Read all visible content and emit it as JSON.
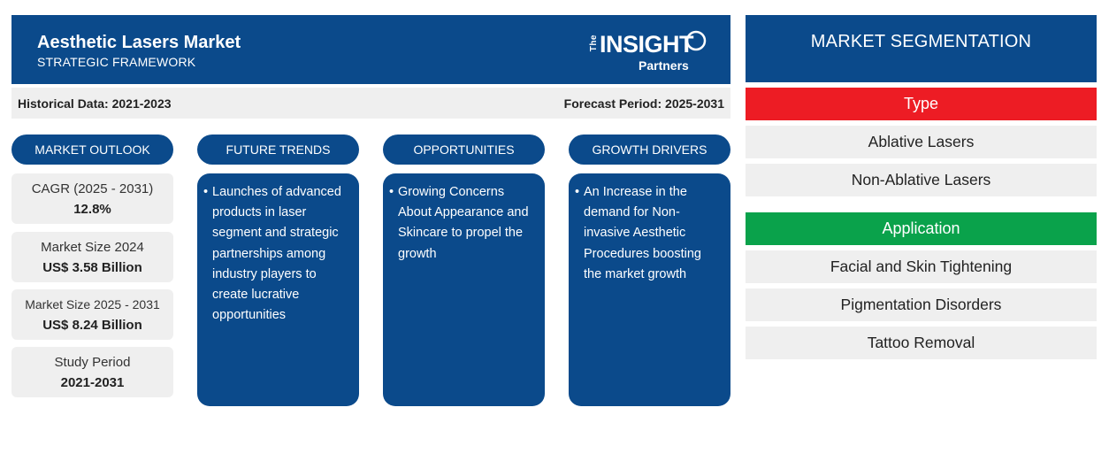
{
  "header": {
    "title": "Aesthetic Lasers Market",
    "subtitle": "STRATEGIC FRAMEWORK",
    "logo": {
      "the": "The",
      "insight": "INSIGHT",
      "partners": "Partners"
    }
  },
  "period": {
    "historical": "Historical Data: 2021-2023",
    "forecast": "Forecast Period: 2025-2031"
  },
  "columns": {
    "outlook": "MARKET OUTLOOK",
    "trends": "FUTURE TRENDS",
    "opportunities": "OPPORTUNITIES",
    "drivers": "GROWTH DRIVERS"
  },
  "outlook": [
    {
      "label": "CAGR (2025 - 2031)",
      "value": "12.8%"
    },
    {
      "label": "Market Size 2024",
      "value": "US$ 3.58 Billion"
    },
    {
      "label": "Market Size 2025 - 2031",
      "value": "US$ 8.24 Billion"
    },
    {
      "label": "Study Period",
      "value": "2021-2031"
    }
  ],
  "cards": {
    "trends": "Launches of advanced products in laser segment and strategic partnerships among industry players to create lucrative opportunities",
    "opportunities": "Growing Concerns About Appearance and Skincare to propel the growth",
    "drivers": "An Increase in the demand for Non-invasive Aesthetic Procedures boosting the market growth"
  },
  "segmentation": {
    "title": "MARKET SEGMENTATION",
    "groups": [
      {
        "name": "Type",
        "color": "#ed1c24",
        "items": [
          "Ablative Lasers",
          "Non-Ablative Lasers"
        ]
      },
      {
        "name": "Application",
        "color": "#0aa24b",
        "items": [
          "Facial and Skin Tightening",
          "Pigmentation Disorders",
          "Tattoo Removal"
        ]
      }
    ]
  },
  "colors": {
    "primary": "#0b4a8b",
    "panel": "#efefef",
    "type_band": "#ed1c24",
    "application_band": "#0aa24b"
  },
  "bullet": "•"
}
